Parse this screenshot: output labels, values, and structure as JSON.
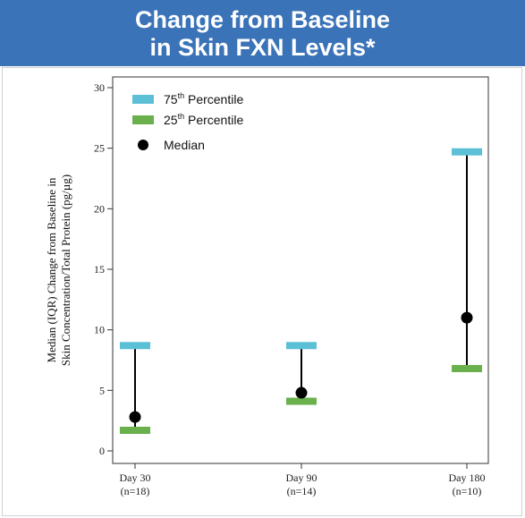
{
  "header": {
    "title_line1": "Change from Baseline",
    "title_line2": "in Skin FXN Levels*"
  },
  "chart_data": {
    "type": "scatter",
    "title": "Change from Baseline in Skin FXN Levels*",
    "ylabel_line1": "Median (IQR) Change from Baseline in",
    "ylabel_line2": "Skin Concentration/Total Protein (pg/µg)",
    "ylim": [
      0,
      30
    ],
    "yticks": [
      "0",
      "5",
      "10",
      "15",
      "20",
      "25",
      "30"
    ],
    "categories": [
      {
        "label": "Day 30",
        "n": "(n=18)"
      },
      {
        "label": "Day 90",
        "n": "(n=14)"
      },
      {
        "label": "Day 180",
        "n": "(n=10)"
      }
    ],
    "series": [
      {
        "name": "75th Percentile",
        "values": [
          8.7,
          8.7,
          24.7
        ],
        "color": "#5bc0d6"
      },
      {
        "name": "25th Percentile",
        "values": [
          1.7,
          4.1,
          6.8
        ],
        "color": "#6ab04c"
      },
      {
        "name": "Median",
        "values": [
          2.8,
          4.8,
          11.0
        ],
        "color": "#000000"
      }
    ],
    "legend": {
      "position": "top-left",
      "items": [
        {
          "base": "75",
          "sup": "th",
          "rest": " Percentile"
        },
        {
          "base": "25",
          "sup": "th",
          "rest": " Percentile"
        },
        {
          "base": "Median",
          "sup": "",
          "rest": ""
        }
      ]
    },
    "grid": false
  }
}
